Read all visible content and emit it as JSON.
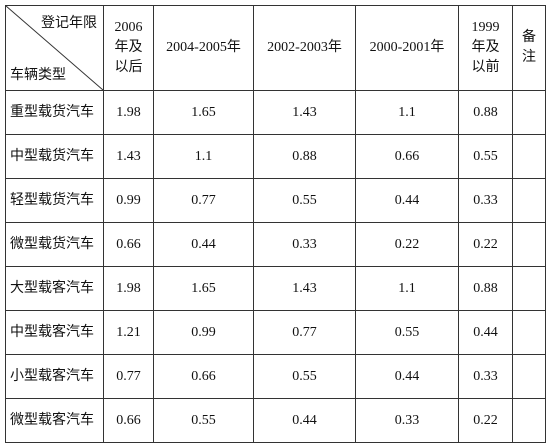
{
  "header": {
    "corner_top": "登记年限",
    "corner_bottom": "车辆类型",
    "columns": [
      "2006年及以后",
      "2004-2005年",
      "2002-2003年",
      "2000-2001年",
      "1999年及以前"
    ],
    "remark": "备注"
  },
  "rows": [
    {
      "label": "重型载货汽车",
      "values": [
        1.98,
        1.65,
        1.43,
        1.1,
        0.88
      ]
    },
    {
      "label": "中型载货汽车",
      "values": [
        1.43,
        1.1,
        0.88,
        0.66,
        0.55
      ]
    },
    {
      "label": "轻型载货汽车",
      "values": [
        0.99,
        0.77,
        0.55,
        0.44,
        0.33
      ]
    },
    {
      "label": "微型载货汽车",
      "values": [
        0.66,
        0.44,
        0.33,
        0.22,
        0.22
      ]
    },
    {
      "label": "大型载客汽车",
      "values": [
        1.98,
        1.65,
        1.43,
        1.1,
        0.88
      ]
    },
    {
      "label": "中型载客汽车",
      "values": [
        1.21,
        0.99,
        0.77,
        0.55,
        0.44
      ]
    },
    {
      "label": "小型载客汽车",
      "values": [
        0.77,
        0.66,
        0.55,
        0.44,
        0.33
      ]
    },
    {
      "label": "微型载客汽车",
      "values": [
        0.66,
        0.55,
        0.44,
        0.33,
        0.22
      ]
    }
  ]
}
